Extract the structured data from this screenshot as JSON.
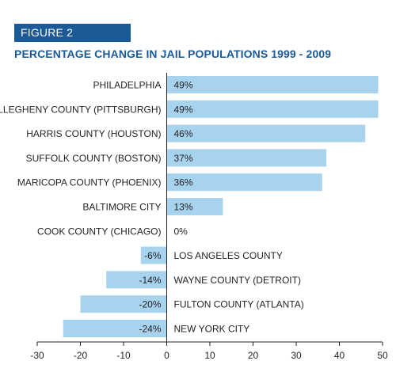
{
  "figure_label": "FIGURE 2",
  "colors": {
    "accent": "#1b5a97",
    "bar": "#a8d3ef",
    "axis": "#231f20"
  },
  "chart_data": {
    "type": "bar",
    "orientation": "horizontal",
    "title": "PERCENTAGE CHANGE IN JAIL POPULATIONS 1999 - 2009",
    "categories": [
      "PHILADELPHIA",
      "ALLEGHENY COUNTY (PITTSBURGH)",
      "HARRIS COUNTY (HOUSTON)",
      "SUFFOLK COUNTY (BOSTON)",
      "MARICOPA COUNTY (PHOENIX)",
      "BALTIMORE CITY",
      "COOK COUNTY (CHICAGO)",
      "LOS ANGELES COUNTY",
      "WAYNE COUNTY (DETROIT)",
      "FULTON COUNTY (ATLANTA)",
      "NEW YORK CITY"
    ],
    "values": [
      49,
      49,
      46,
      37,
      36,
      13,
      0,
      -6,
      -14,
      -20,
      -24
    ],
    "value_labels": [
      "49%",
      "49%",
      "46%",
      "37%",
      "36%",
      "13%",
      "0%",
      "-6%",
      "-14%",
      "-20%",
      "-24%"
    ],
    "xlim": [
      -30,
      50
    ],
    "xticks": [
      "-30",
      "-20",
      "-10",
      "0",
      "10",
      "20",
      "30",
      "40",
      "50"
    ],
    "xtick_values": [
      -30,
      -20,
      -10,
      0,
      10,
      20,
      30,
      40,
      50
    ],
    "grid": false,
    "legend": "none"
  }
}
